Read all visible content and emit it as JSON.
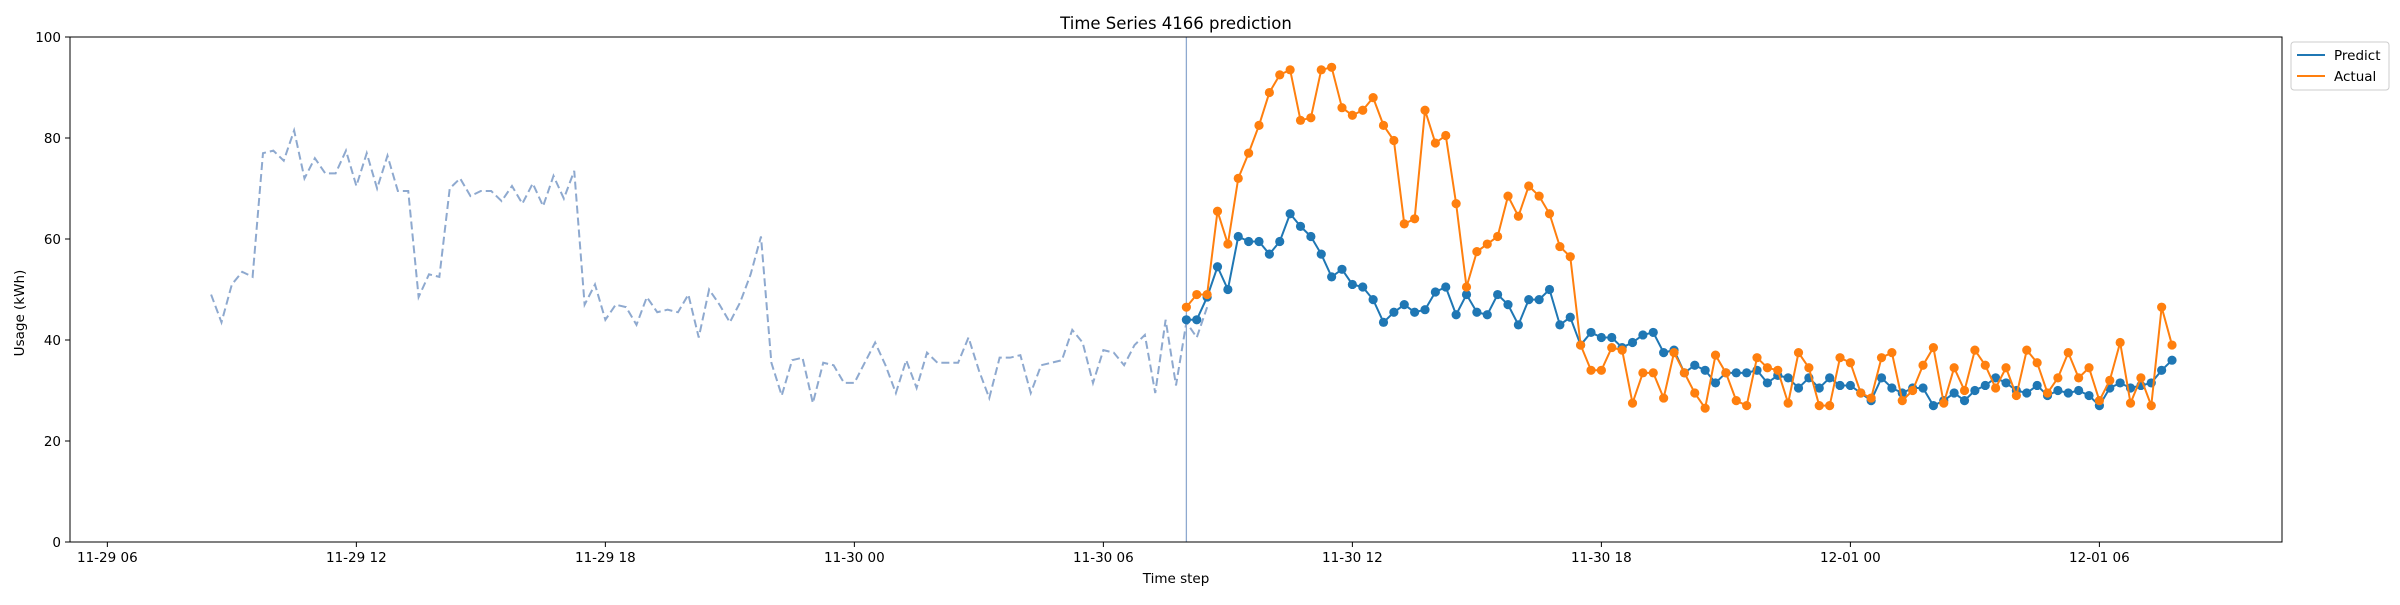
{
  "chart_data": {
    "type": "line",
    "title": "Time Series 4166 prediction",
    "xlabel": "Time step",
    "ylabel": "Usage (kWh)",
    "x_unit": "hour",
    "xlim": [
      "2025-11-29 05:06",
      "2025-12-01 10:24"
    ],
    "ylim": [
      0,
      100
    ],
    "x_ticks": [
      {
        "value": "2025-11-29 06:00",
        "label": "11-29 06"
      },
      {
        "value": "2025-11-29 12:00",
        "label": "11-29 12"
      },
      {
        "value": "2025-11-29 18:00",
        "label": "11-29 18"
      },
      {
        "value": "2025-11-30 00:00",
        "label": "11-30 00"
      },
      {
        "value": "2025-11-30 06:00",
        "label": "11-30 06"
      },
      {
        "value": "2025-11-30 12:00",
        "label": "11-30 12"
      },
      {
        "value": "2025-11-30 18:00",
        "label": "11-30 18"
      },
      {
        "value": "2025-12-01 00:00",
        "label": "12-01 00"
      },
      {
        "value": "2025-12-01 06:00",
        "label": "12-01 06"
      }
    ],
    "y_ticks": [
      0,
      20,
      40,
      60,
      80,
      100
    ],
    "grid": false,
    "legend": "upper-right-outside",
    "forecast_start": "2025-11-30 08:00",
    "history": {
      "color": "#8ea9cf",
      "style": "dashed",
      "start": "2025-11-29 08:30",
      "step_minutes": 15,
      "values": [
        49,
        43.5,
        51,
        53.5,
        52.5,
        77,
        77.5,
        75.5,
        81.5,
        72,
        76,
        73,
        73,
        77.5,
        70.5,
        77,
        70,
        76.5,
        69.5,
        69.5,
        48.5,
        53,
        52.5,
        70,
        72,
        68.5,
        69.5,
        69.5,
        67.5,
        70.5,
        67,
        71,
        66.5,
        72.5,
        68,
        73.5,
        47,
        51,
        44,
        47,
        46.5,
        43,
        48.5,
        45.5,
        46,
        45.5,
        49,
        40.5,
        50,
        47,
        43.5,
        47.5,
        53,
        60.5,
        35.5,
        29,
        36,
        36.5,
        27.5,
        35.5,
        35,
        31.5,
        31.5,
        35.5,
        39.5,
        35,
        29.5,
        36,
        30.5,
        37.5,
        35.5,
        35.5,
        35.5,
        40.5,
        34,
        28.5,
        36.5,
        36.5,
        37,
        29.5,
        35,
        35.5,
        36,
        42,
        39.5,
        31.5,
        38,
        37.5,
        35,
        39,
        41,
        29.5,
        44,
        31,
        43.5,
        40.5,
        46.5
      ]
    },
    "series": [
      {
        "name": "Predict",
        "color": "#1f77b4",
        "start": "2025-11-30 08:00",
        "step_minutes": 15,
        "values": [
          44,
          44,
          48.5,
          54.5,
          50,
          60.5,
          59.5,
          59.5,
          57,
          59.5,
          65,
          62.5,
          60.5,
          57,
          52.5,
          54,
          51,
          50.5,
          48,
          43.5,
          45.5,
          47,
          45.5,
          46,
          49.5,
          50.5,
          45,
          49,
          45.5,
          45,
          49,
          47,
          43,
          48,
          48,
          50,
          43,
          44.5,
          39,
          41.5,
          40.5,
          40.5,
          38.5,
          39.5,
          41,
          41.5,
          37.5,
          38,
          33.5,
          35,
          34,
          31.5,
          33.5,
          33.5,
          33.5,
          34,
          31.5,
          33,
          32.5,
          30.5,
          32.5,
          30.5,
          32.5,
          31,
          31,
          29.5,
          28,
          32.5,
          30.5,
          29.5,
          30.5,
          30.5,
          27,
          28,
          29.5,
          28,
          30,
          31,
          32.5,
          31.5,
          30,
          29.5,
          31,
          29,
          30,
          29.5,
          30,
          29,
          27,
          30.5,
          31.5,
          30.5,
          31,
          31.5,
          34,
          36
        ]
      },
      {
        "name": "Actual",
        "color": "#ff7f0e",
        "start": "2025-11-30 08:00",
        "step_minutes": 15,
        "values": [
          46.5,
          49,
          49,
          65.5,
          59,
          72,
          77,
          82.5,
          89,
          92.5,
          93.5,
          83.5,
          84,
          93.5,
          94,
          86,
          84.5,
          85.5,
          88,
          82.5,
          79.5,
          63,
          64,
          85.5,
          79,
          80.5,
          67,
          50.5,
          57.5,
          59,
          60.5,
          68.5,
          64.5,
          70.5,
          68.5,
          65,
          58.5,
          56.5,
          39,
          34,
          34,
          38.5,
          38,
          27.5,
          33.5,
          33.5,
          28.5,
          37.5,
          33.5,
          29.5,
          26.5,
          37,
          33.5,
          28,
          27,
          36.5,
          34.5,
          34,
          27.5,
          37.5,
          34.5,
          27,
          27,
          36.5,
          35.5,
          29.5,
          28.5,
          36.5,
          37.5,
          28,
          30,
          35,
          38.5,
          27.5,
          34.5,
          30,
          38,
          35,
          30.5,
          34.5,
          29,
          38,
          35.5,
          29.5,
          32.5,
          37.5,
          32.5,
          34.5,
          28,
          32,
          39.5,
          27.5,
          32.5,
          27,
          46.5,
          39
        ]
      }
    ]
  }
}
